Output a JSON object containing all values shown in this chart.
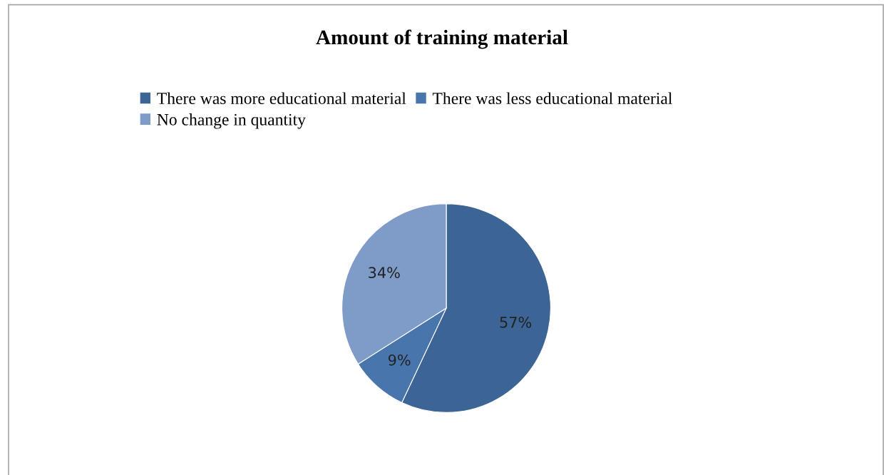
{
  "chart_data": {
    "type": "pie",
    "title": "Amount of training material",
    "categories": [
      "There was more educational material",
      "There was less educational material",
      "No change in quantity"
    ],
    "values": [
      57,
      9,
      34
    ],
    "value_labels": [
      "57%",
      "9%",
      "34%"
    ],
    "colors": [
      "#3c6494",
      "#4876ac",
      "#7f9cc8"
    ],
    "legend": "top"
  }
}
